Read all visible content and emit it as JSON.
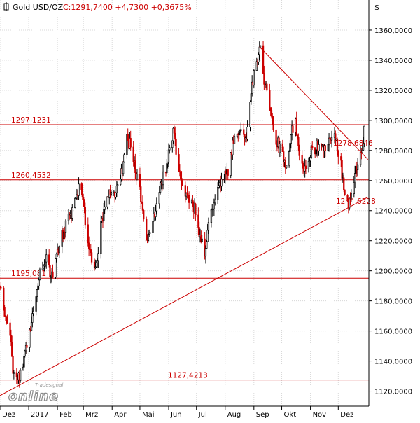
{
  "header": {
    "symbol": "Gold USD/OZ",
    "quote": "C:1291,7400 +4,7300 +0,3675%"
  },
  "currency_label": "$",
  "logo": {
    "tag": "Tradesignal",
    "word": "online"
  },
  "colors": {
    "background": "#ffffff",
    "candle": "#000000",
    "candle_down": "#cc0000",
    "level_line": "#cc0000",
    "grid": "#d8d8d8",
    "axis_text": "#000000",
    "level_text": "#cc0000",
    "quote_text": "#cc0000"
  },
  "chart_data": {
    "type": "candlestick",
    "y_axis": {
      "range": [
        1110,
        1380
      ],
      "ticks": [
        1120,
        1140,
        1160,
        1180,
        1200,
        1220,
        1240,
        1260,
        1280,
        1300,
        1320,
        1340,
        1360
      ],
      "tick_labels": [
        "1120,0000",
        "1140,0000",
        "1160,0000",
        "1180,0000",
        "1200,0000",
        "1220,0000",
        "1240,0000",
        "1260,0000",
        "1280,0000",
        "1300,0000",
        "1320,0000",
        "1340,0000",
        "1360,0000"
      ]
    },
    "x_axis": {
      "range": [
        "2016-12-01",
        "2018-01-03"
      ],
      "ticks": [
        {
          "date": "2016-12-01",
          "label": "Dez"
        },
        {
          "date": "2017-01-01",
          "label": "2017"
        },
        {
          "date": "2017-02-01",
          "label": "Feb"
        },
        {
          "date": "2017-03-01",
          "label": "Mrz"
        },
        {
          "date": "2017-04-01",
          "label": "Apr"
        },
        {
          "date": "2017-05-01",
          "label": "Mai"
        },
        {
          "date": "2017-06-01",
          "label": "Jun"
        },
        {
          "date": "2017-07-01",
          "label": "Jul"
        },
        {
          "date": "2017-08-01",
          "label": "Aug"
        },
        {
          "date": "2017-09-01",
          "label": "Sep"
        },
        {
          "date": "2017-10-01",
          "label": "Okt"
        },
        {
          "date": "2017-11-01",
          "label": "Nov"
        },
        {
          "date": "2017-12-01",
          "label": "Dez"
        }
      ]
    },
    "grid": {
      "horizontal": true,
      "vertical": true
    },
    "horizontal_levels": [
      {
        "value": 1297.1231,
        "label": "1297,1231"
      },
      {
        "value": 1260.4532,
        "label": "1260,4532"
      },
      {
        "value": 1195.081,
        "label": "1195,081"
      },
      {
        "value": 1127.4213,
        "label": "1127,4213"
      }
    ],
    "trendlines": [
      {
        "from": {
          "date": "2016-11-28",
          "value": 1116
        },
        "to": {
          "date": "2018-01-02",
          "value": 1249
        },
        "label": "1244,6228"
      },
      {
        "from": {
          "date": "2017-09-07",
          "value": 1349
        },
        "to": {
          "date": "2018-01-02",
          "value": 1274
        },
        "label": "1278,6846"
      }
    ],
    "price_path": [
      [
        "2016-12-01",
        1190
      ],
      [
        "2016-12-06",
        1170
      ],
      [
        "2016-12-12",
        1160
      ],
      [
        "2016-12-15",
        1130
      ],
      [
        "2016-12-20",
        1128
      ],
      [
        "2016-12-23",
        1132
      ],
      [
        "2016-12-29",
        1148
      ],
      [
        "2017-01-06",
        1172
      ],
      [
        "2017-01-12",
        1196
      ],
      [
        "2017-01-19",
        1208
      ],
      [
        "2017-01-26",
        1196
      ],
      [
        "2017-02-02",
        1215
      ],
      [
        "2017-02-09",
        1228
      ],
      [
        "2017-02-16",
        1238
      ],
      [
        "2017-02-23",
        1254
      ],
      [
        "2017-02-27",
        1258
      ],
      [
        "2017-03-03",
        1232
      ],
      [
        "2017-03-09",
        1208
      ],
      [
        "2017-03-14",
        1200
      ],
      [
        "2017-03-20",
        1230
      ],
      [
        "2017-03-27",
        1252
      ],
      [
        "2017-04-03",
        1250
      ],
      [
        "2017-04-10",
        1260
      ],
      [
        "2017-04-17",
        1288
      ],
      [
        "2017-04-20",
        1284
      ],
      [
        "2017-04-25",
        1270
      ],
      [
        "2017-05-01",
        1255
      ],
      [
        "2017-05-05",
        1230
      ],
      [
        "2017-05-09",
        1220
      ],
      [
        "2017-05-15",
        1230
      ],
      [
        "2017-05-22",
        1256
      ],
      [
        "2017-05-29",
        1268
      ],
      [
        "2017-06-06",
        1292
      ],
      [
        "2017-06-12",
        1268
      ],
      [
        "2017-06-19",
        1250
      ],
      [
        "2017-06-26",
        1244
      ],
      [
        "2017-06-30",
        1240
      ],
      [
        "2017-07-05",
        1222
      ],
      [
        "2017-07-10",
        1210
      ],
      [
        "2017-07-14",
        1230
      ],
      [
        "2017-07-20",
        1244
      ],
      [
        "2017-07-27",
        1258
      ],
      [
        "2017-08-03",
        1264
      ],
      [
        "2017-08-10",
        1286
      ],
      [
        "2017-08-17",
        1290
      ],
      [
        "2017-08-24",
        1288
      ],
      [
        "2017-08-29",
        1318
      ],
      [
        "2017-09-04",
        1340
      ],
      [
        "2017-09-07",
        1350
      ],
      [
        "2017-09-12",
        1328
      ],
      [
        "2017-09-18",
        1308
      ],
      [
        "2017-09-22",
        1295
      ],
      [
        "2017-09-28",
        1282
      ],
      [
        "2017-10-03",
        1275
      ],
      [
        "2017-10-06",
        1270
      ],
      [
        "2017-10-11",
        1292
      ],
      [
        "2017-10-16",
        1298
      ],
      [
        "2017-10-20",
        1280
      ],
      [
        "2017-10-26",
        1268
      ],
      [
        "2017-11-01",
        1278
      ],
      [
        "2017-11-08",
        1282
      ],
      [
        "2017-11-14",
        1280
      ],
      [
        "2017-11-20",
        1284
      ],
      [
        "2017-11-27",
        1294
      ],
      [
        "2017-11-30",
        1282
      ],
      [
        "2017-12-05",
        1266
      ],
      [
        "2017-12-08",
        1248
      ],
      [
        "2017-12-12",
        1242
      ],
      [
        "2017-12-15",
        1254
      ],
      [
        "2017-12-20",
        1266
      ],
      [
        "2017-12-26",
        1278
      ],
      [
        "2017-12-29",
        1292
      ]
    ]
  }
}
